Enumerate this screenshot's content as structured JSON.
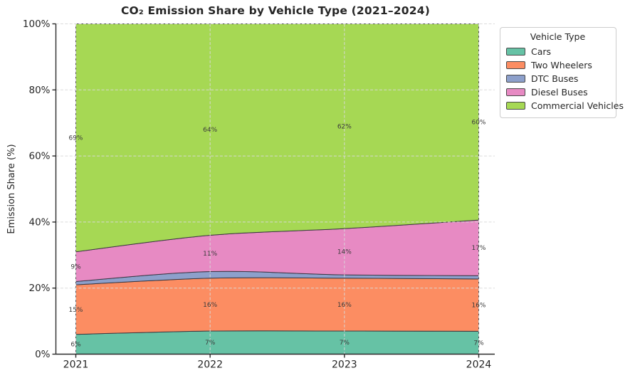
{
  "title": "CO₂ Emission Share by Vehicle Type (2021–2024)",
  "axes": {
    "ylabel": "Emission Share (%)",
    "y_tick_labels": [
      "0%",
      "20%",
      "40%",
      "60%",
      "80%",
      "100%"
    ],
    "y_tick_values": [
      0,
      20,
      40,
      60,
      80,
      100
    ],
    "x_tick_labels": [
      "2021",
      "2022",
      "2023",
      "2024"
    ]
  },
  "legend": {
    "title": "Vehicle Type"
  },
  "chart_data": {
    "type": "area",
    "stacked": true,
    "title": "CO₂ Emission Share by Vehicle Type (2021–2024)",
    "xlabel": "",
    "ylabel": "Emission Share (%)",
    "x": [
      2021,
      2022,
      2023,
      2024
    ],
    "ylim": [
      0,
      100
    ],
    "grid": true,
    "legend_position": "upper right, outside plot",
    "series": [
      {
        "name": "Cars",
        "color": "#66c2a5",
        "values": [
          6,
          7,
          7,
          7
        ],
        "point_labels": [
          "6%",
          "7%",
          "7%",
          "7%"
        ]
      },
      {
        "name": "Two Wheelers",
        "color": "#fc8d62",
        "values": [
          15,
          16,
          16,
          16
        ],
        "point_labels": [
          "15%",
          "16%",
          "16%",
          "16%"
        ]
      },
      {
        "name": "DTC Buses",
        "color": "#8da0cb",
        "values": [
          1,
          2,
          1,
          1
        ],
        "point_labels": [
          "",
          "",
          "",
          ""
        ]
      },
      {
        "name": "Diesel Buses",
        "color": "#e78ac3",
        "values": [
          9,
          11,
          14,
          17
        ],
        "point_labels": [
          "9%",
          "11%",
          "14%",
          "17%"
        ]
      },
      {
        "name": "Commercial Vehicles",
        "color": "#a6d854",
        "values": [
          69,
          64,
          62,
          60
        ],
        "point_labels": [
          "69%",
          "64%",
          "62%",
          "60%"
        ]
      }
    ]
  },
  "colors": {
    "grid": "#d9d9d9",
    "spine": "#2b2b2b",
    "area_edge": "#2f2f3a",
    "band_label_text": "#3b3b3b",
    "tick_text": "#262626"
  }
}
